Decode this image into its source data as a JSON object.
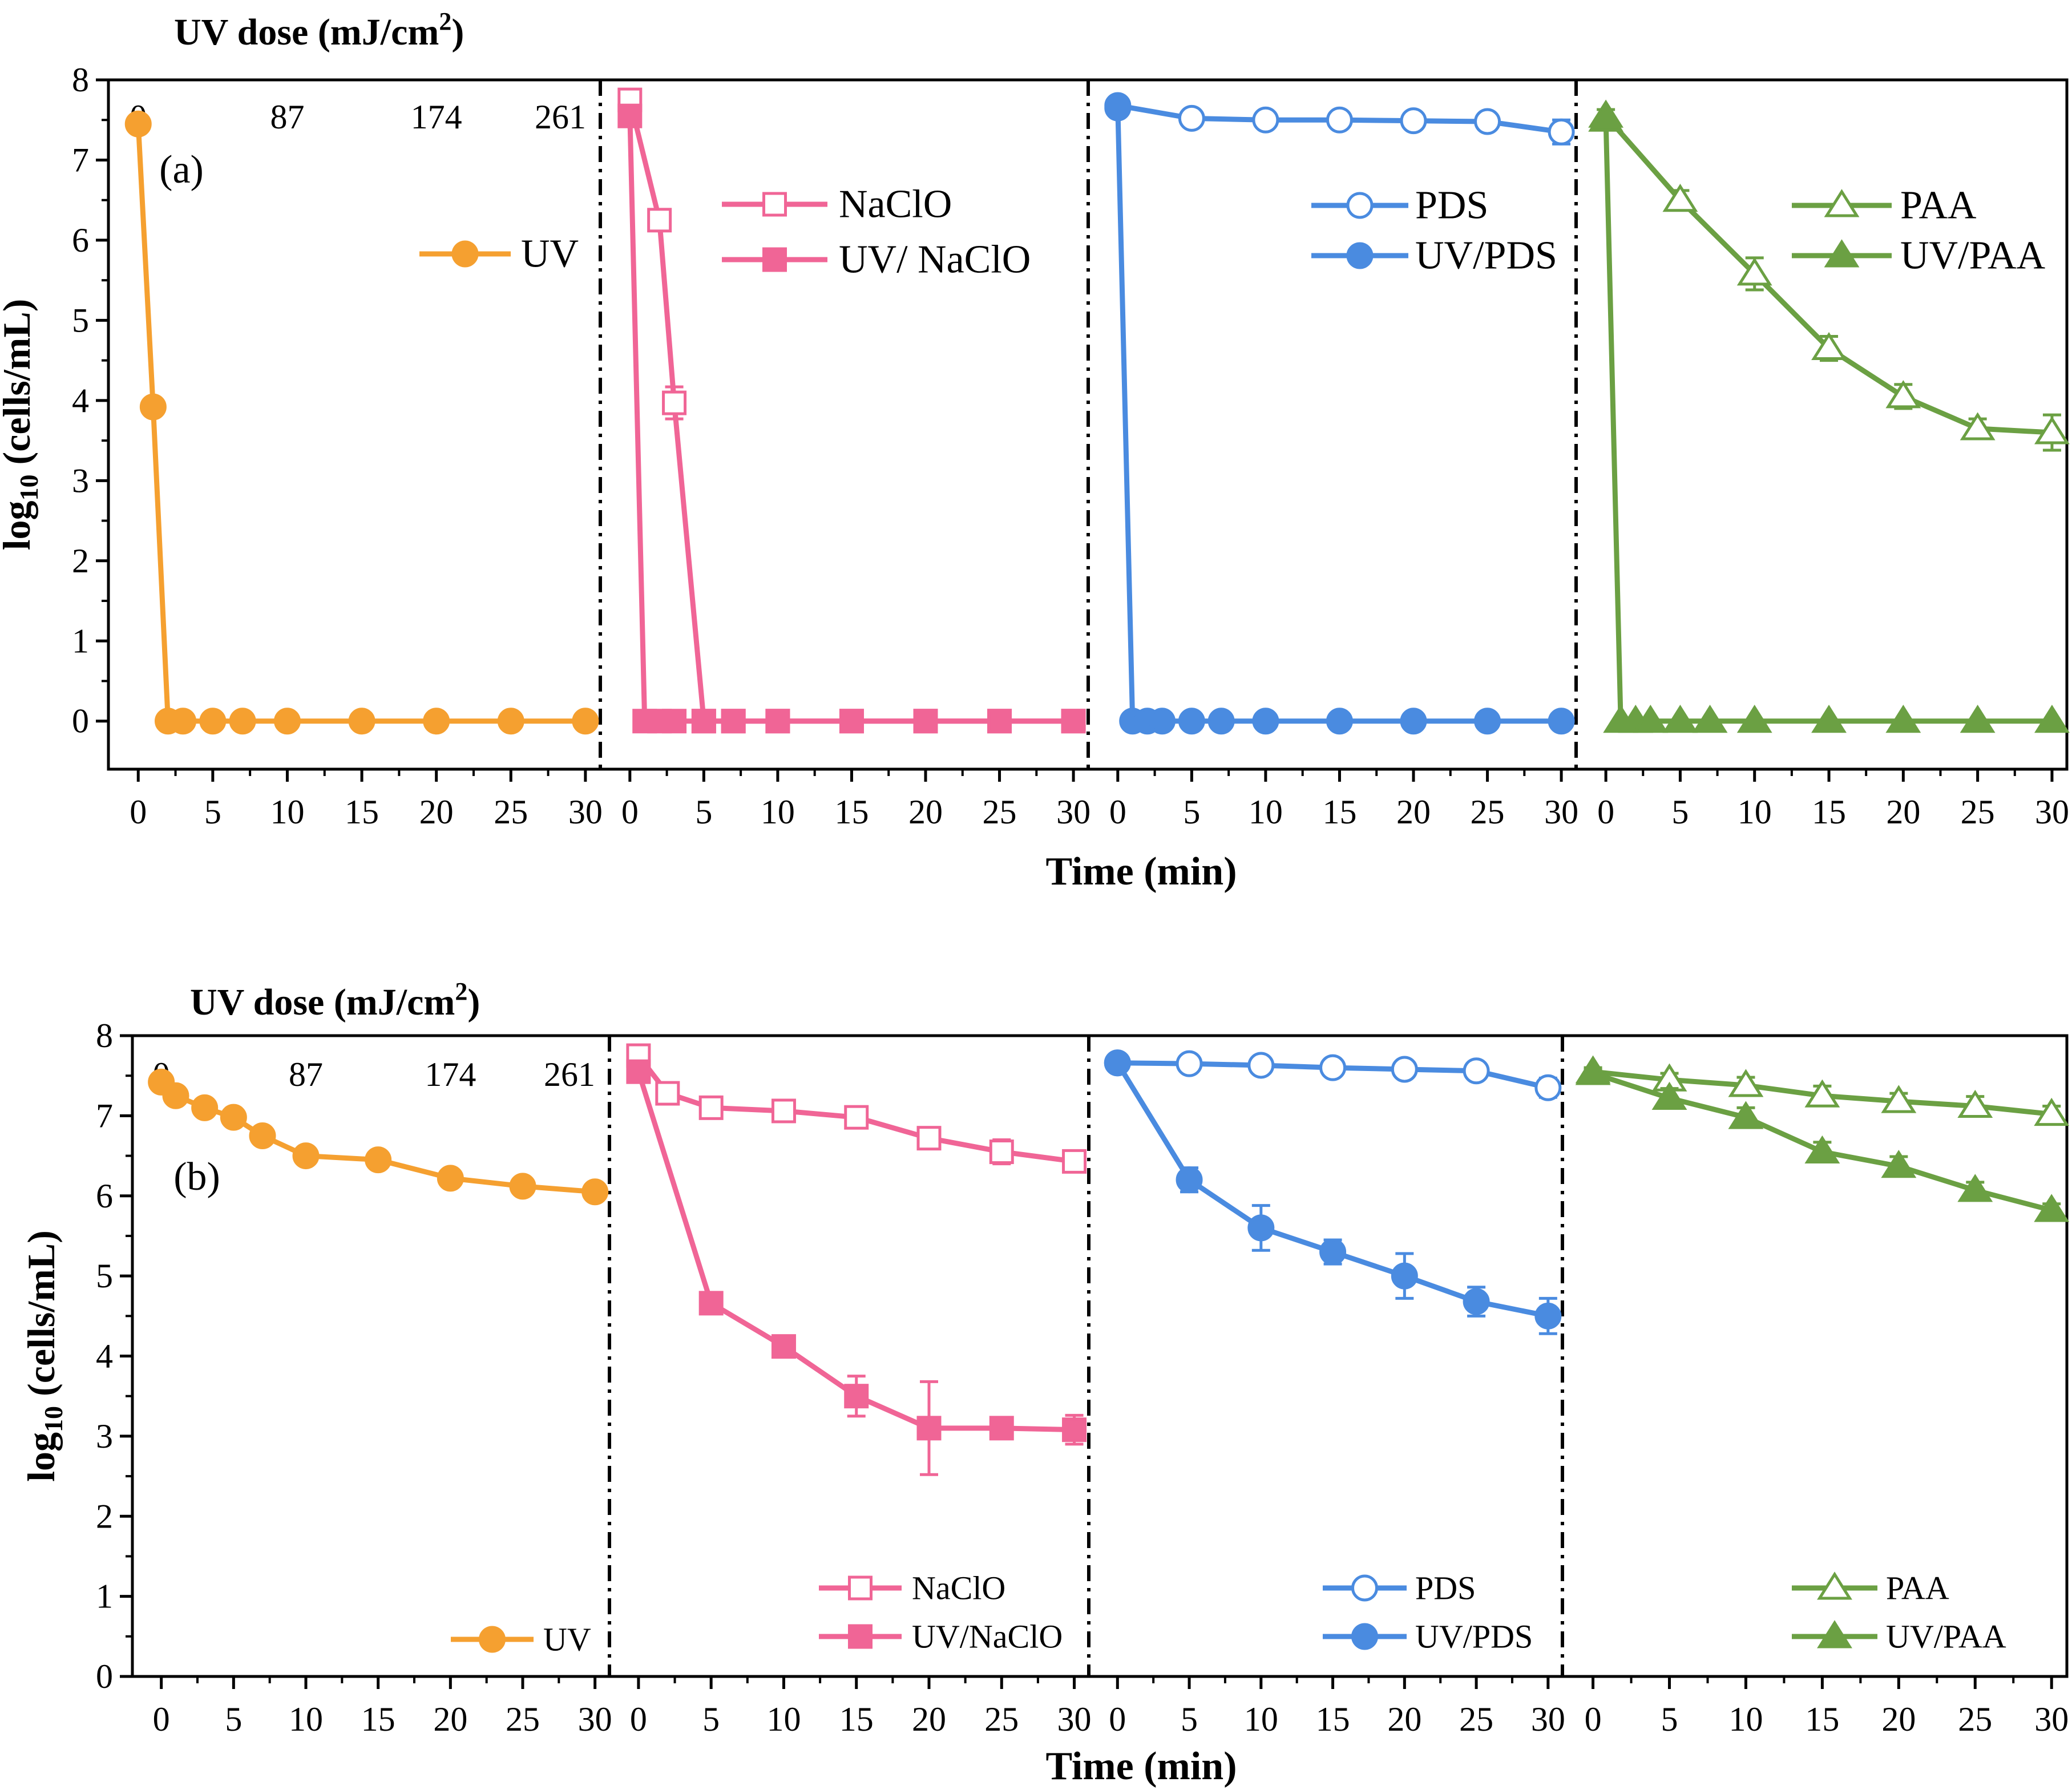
{
  "figure": {
    "time_axis_label": "Time (min)",
    "y_axis_label_main": "log",
    "y_axis_label_sub": "10",
    "y_axis_label_rest": " (cells/mL)",
    "dose_label_main": "UV dose (mJ/cm",
    "dose_label_sup": "2",
    "dose_label_close": ")",
    "dose_ticks": [
      "0",
      "87",
      "174",
      "261"
    ],
    "x_ticks": [
      "0",
      "5",
      "10",
      "15",
      "20",
      "25",
      "30"
    ],
    "y_ticks": [
      "0",
      "1",
      "2",
      "3",
      "4",
      "5",
      "6",
      "7",
      "8"
    ]
  },
  "colors": {
    "uv": "#F5A030",
    "naclo": "#F06596",
    "pds": "#4A8BE0",
    "paa": "#6BA043"
  },
  "chart_data": [
    {
      "type": "line",
      "title": "(a)",
      "xlabel": "Time (min)",
      "ylabel": "log10 (cells/mL)",
      "secondary_xlabel": "UV dose (mJ/cm2)",
      "secondary_x_ticks": [
        0,
        87,
        174,
        261
      ],
      "xlim": [
        -2,
        31
      ],
      "ylim": [
        -0.6,
        8
      ],
      "panels": [
        {
          "name": "UV",
          "series": [
            {
              "name": "UV",
              "marker": "circle",
              "filled": true,
              "color_key": "uv",
              "x": [
                0,
                1,
                2,
                3,
                5,
                7,
                10,
                15,
                20,
                25,
                30
              ],
              "y": [
                7.45,
                3.92,
                0,
                0,
                0,
                0,
                0,
                0,
                0,
                0,
                0
              ]
            }
          ]
        },
        {
          "name": "NaClO",
          "series": [
            {
              "name": "NaClO",
              "marker": "square",
              "filled": false,
              "color_key": "naclo",
              "x": [
                0,
                2,
                3,
                5,
                7,
                10,
                15,
                20,
                25,
                30
              ],
              "y": [
                7.75,
                6.25,
                3.97,
                0,
                0,
                0,
                0,
                0,
                0,
                0
              ],
              "err": [
                0.05,
                0.1,
                0.2,
                0,
                0,
                0,
                0,
                0,
                0,
                0
              ]
            },
            {
              "name": "UV/ NaClO",
              "marker": "square",
              "filled": true,
              "color_key": "naclo",
              "x": [
                0,
                1,
                2,
                3,
                5,
                7,
                10,
                15,
                20,
                25,
                30
              ],
              "y": [
                7.55,
                0,
                0,
                0,
                0,
                0,
                0,
                0,
                0,
                0,
                0
              ]
            }
          ]
        },
        {
          "name": "PDS",
          "series": [
            {
              "name": "PDS",
              "marker": "circle",
              "filled": false,
              "color_key": "pds",
              "x": [
                0,
                5,
                10,
                15,
                20,
                25,
                30
              ],
              "y": [
                7.68,
                7.52,
                7.5,
                7.5,
                7.49,
                7.48,
                7.35
              ],
              "err": [
                0.05,
                0.08,
                0.08,
                0.08,
                0.08,
                0.1,
                0.15
              ]
            },
            {
              "name": "UV/PDS",
              "marker": "circle",
              "filled": true,
              "color_key": "pds",
              "x": [
                0,
                1,
                2,
                3,
                5,
                7,
                10,
                15,
                20,
                25,
                30
              ],
              "y": [
                7.65,
                0,
                0,
                0,
                0,
                0,
                0,
                0,
                0,
                0,
                0
              ]
            }
          ]
        },
        {
          "name": "PAA",
          "series": [
            {
              "name": "PAA",
              "marker": "triangle",
              "filled": false,
              "color_key": "paa",
              "x": [
                0,
                5,
                10,
                15,
                20,
                25,
                30
              ],
              "y": [
                7.55,
                6.5,
                5.58,
                4.65,
                4.05,
                3.65,
                3.6
              ],
              "err": [
                0.08,
                0.12,
                0.2,
                0.15,
                0.15,
                0.12,
                0.22
              ]
            },
            {
              "name": "UV/PAA",
              "marker": "triangle",
              "filled": true,
              "color_key": "paa",
              "x": [
                0,
                1,
                2,
                3,
                5,
                7,
                10,
                15,
                20,
                25,
                30
              ],
              "y": [
                7.5,
                0,
                0,
                0,
                0,
                0,
                0,
                0,
                0,
                0,
                0
              ]
            }
          ]
        }
      ]
    },
    {
      "type": "line",
      "title": "(b)",
      "xlabel": "Time (min)",
      "ylabel": "log10 (cells/mL)",
      "secondary_xlabel": "UV dose (mJ/cm2)",
      "secondary_x_ticks": [
        0,
        87,
        174,
        261
      ],
      "xlim": [
        -2,
        31
      ],
      "ylim": [
        0,
        8
      ],
      "panels": [
        {
          "name": "UV",
          "series": [
            {
              "name": "UV",
              "marker": "circle",
              "filled": true,
              "color_key": "uv",
              "x": [
                0,
                1,
                3,
                5,
                7,
                10,
                15,
                20,
                25,
                30
              ],
              "y": [
                7.42,
                7.25,
                7.1,
                6.98,
                6.75,
                6.5,
                6.45,
                6.22,
                6.12,
                6.05
              ]
            }
          ]
        },
        {
          "name": "NaClO",
          "series": [
            {
              "name": "NaClO",
              "marker": "square",
              "filled": false,
              "color_key": "naclo",
              "x": [
                0,
                2,
                5,
                10,
                15,
                20,
                25,
                30
              ],
              "y": [
                7.75,
                7.28,
                7.1,
                7.06,
                6.98,
                6.72,
                6.55,
                6.43
              ],
              "err": [
                0.1,
                0.12,
                0.1,
                0.12,
                0.1,
                0.12,
                0.15,
                0.12
              ]
            },
            {
              "name": "UV/NaClO",
              "marker": "square",
              "filled": true,
              "color_key": "naclo",
              "x": [
                0,
                5,
                10,
                15,
                20,
                25,
                30
              ],
              "y": [
                7.55,
                4.66,
                4.12,
                3.5,
                3.1,
                3.1,
                3.08
              ],
              "err": [
                0.05,
                0.1,
                0.12,
                0.25,
                0.58,
                0.12,
                0.18
              ]
            }
          ]
        },
        {
          "name": "PDS",
          "series": [
            {
              "name": "PDS",
              "marker": "circle",
              "filled": false,
              "color_key": "pds",
              "x": [
                0,
                5,
                10,
                15,
                20,
                25,
                30
              ],
              "y": [
                7.66,
                7.65,
                7.63,
                7.6,
                7.58,
                7.56,
                7.35
              ],
              "err": [
                0.05,
                0.08,
                0.1,
                0.1,
                0.1,
                0.1,
                0.12
              ]
            },
            {
              "name": "UV/PDS",
              "marker": "circle",
              "filled": true,
              "color_key": "pds",
              "x": [
                0,
                5,
                10,
                15,
                20,
                25,
                30
              ],
              "y": [
                7.66,
                6.2,
                5.6,
                5.3,
                5.0,
                4.68,
                4.5
              ],
              "err": [
                0.05,
                0.15,
                0.28,
                0.15,
                0.28,
                0.18,
                0.22
              ]
            }
          ]
        },
        {
          "name": "PAA",
          "series": [
            {
              "name": "PAA",
              "marker": "triangle",
              "filled": false,
              "color_key": "paa",
              "x": [
                0,
                5,
                10,
                15,
                20,
                25,
                30
              ],
              "y": [
                7.55,
                7.45,
                7.38,
                7.25,
                7.18,
                7.12,
                7.02
              ],
              "err": [
                0.05,
                0.08,
                0.1,
                0.12,
                0.1,
                0.12,
                0.1
              ]
            },
            {
              "name": "UV/PAA",
              "marker": "triangle",
              "filled": true,
              "color_key": "paa",
              "x": [
                0,
                5,
                10,
                15,
                20,
                25,
                30
              ],
              "y": [
                7.53,
                7.22,
                6.98,
                6.55,
                6.37,
                6.07,
                5.82
              ],
              "err": [
                0.05,
                0.12,
                0.12,
                0.12,
                0.12,
                0.1,
                0.08
              ]
            }
          ]
        }
      ]
    }
  ]
}
